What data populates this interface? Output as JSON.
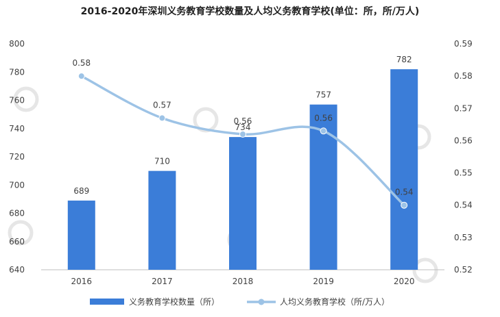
{
  "chart_data": {
    "type": "bar",
    "title": "2016-2020年深圳义务教育学校数量及人均义务教育学校(单位：所，所/万人)",
    "categories": [
      "2016",
      "2017",
      "2018",
      "2019",
      "2020"
    ],
    "series": [
      {
        "name": "义务教育学校数量（所）",
        "type": "bar",
        "axis": "left",
        "values": [
          689,
          710,
          734,
          757,
          782
        ],
        "labels": [
          "689",
          "710",
          "734",
          "757",
          "782"
        ]
      },
      {
        "name": "人均义务教育学校（所/万人）",
        "type": "line",
        "axis": "right",
        "values": [
          0.58,
          0.567,
          0.562,
          0.563,
          0.54
        ],
        "labels": [
          "0.58",
          "0.57",
          "0.56",
          "0.56",
          "0.54"
        ]
      }
    ],
    "y_left": {
      "min": 640,
      "max": 800,
      "step": 20,
      "ticks": [
        "640",
        "660",
        "680",
        "700",
        "720",
        "740",
        "760",
        "780",
        "800"
      ]
    },
    "y_right": {
      "min": 0.52,
      "max": 0.59,
      "step": 0.01,
      "ticks": [
        "0.52",
        "0.53",
        "0.54",
        "0.55",
        "0.56",
        "0.57",
        "0.58",
        "0.59"
      ]
    },
    "grid": false,
    "legend_position": "bottom",
    "colors": {
      "bar": "#3b7dd8",
      "line": "#9dc3e6",
      "marker": "#9dc3e6",
      "axis": "#bfbfbf",
      "text": "#404040"
    }
  }
}
